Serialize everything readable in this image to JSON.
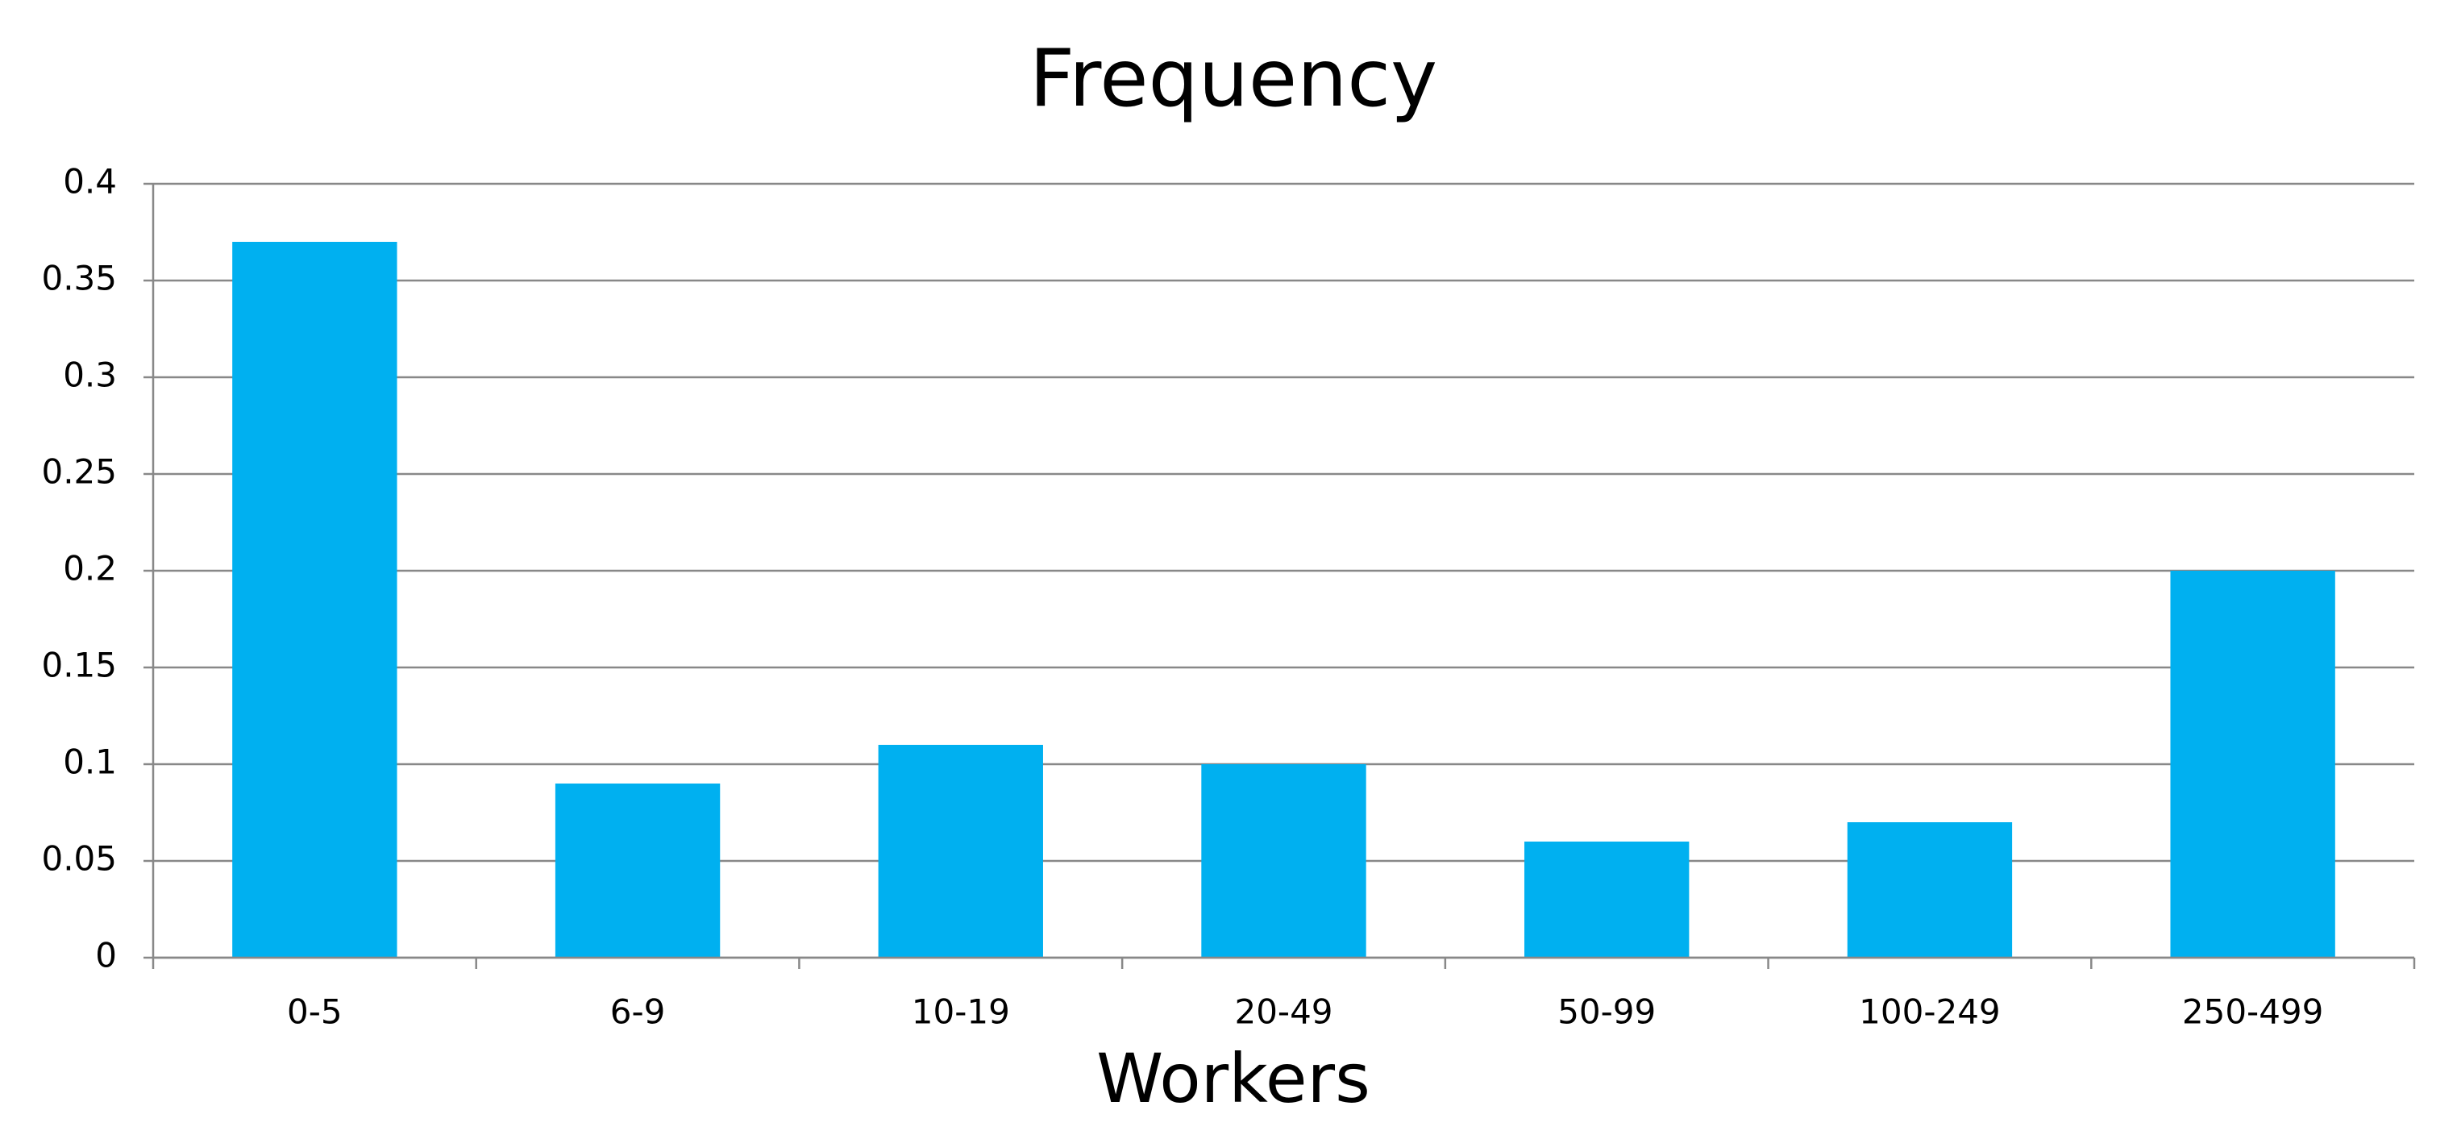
{
  "chart_data": {
    "type": "bar",
    "title": "Frequency",
    "x_label": "Workers",
    "categories": [
      "0-5",
      "6-9",
      "10-19",
      "20-49",
      "50-99",
      "100-249",
      "250-499"
    ],
    "values": [
      0.37,
      0.09,
      0.11,
      0.1,
      0.06,
      0.07,
      0.2
    ],
    "color": "#00b0f0",
    "ylim": [
      0,
      0.4
    ],
    "yticks": [
      0,
      0.05,
      0.1,
      0.15,
      0.2,
      0.25,
      0.3,
      0.35,
      0.4
    ],
    "grid": true
  }
}
